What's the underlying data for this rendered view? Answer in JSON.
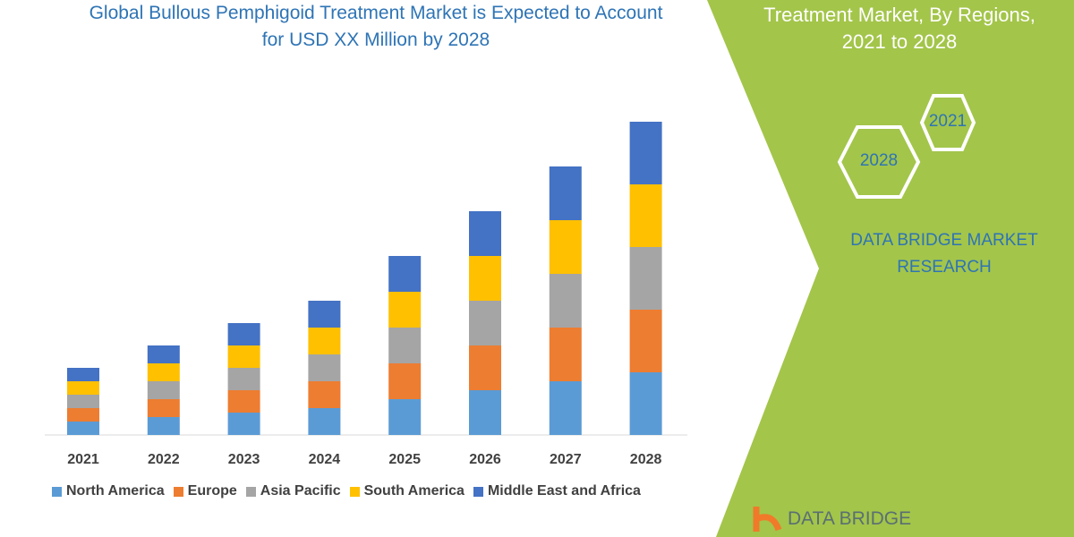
{
  "title_line1": "Global Bullous Pemphigoid Treatment Market is Expected to Account",
  "title_line2": "for USD XX Million by 2028",
  "panel": {
    "title_line1": "Treatment Market, By Regions,",
    "title_line2": "2021 to 2028",
    "hex_a": "2021",
    "hex_b": "2028",
    "brand_line1": "DATA BRIDGE MARKET",
    "brand_line2": "RESEARCH",
    "logo_text": "DATA BRIDGE",
    "color": "#a3c54a"
  },
  "chart_data": {
    "type": "bar",
    "stacked": true,
    "grid": false,
    "legend": "bottom",
    "categories": [
      "2021",
      "2022",
      "2023",
      "2024",
      "2025",
      "2026",
      "2027",
      "2028"
    ],
    "series": [
      {
        "name": "North America",
        "color": "#5b9bd5",
        "values": [
          15,
          20,
          25,
          30,
          40,
          50,
          60,
          70
        ]
      },
      {
        "name": "Europe",
        "color": "#ed7d31",
        "values": [
          15,
          20,
          25,
          30,
          40,
          50,
          60,
          70
        ]
      },
      {
        "name": "Asia Pacific",
        "color": "#a5a5a5",
        "values": [
          15,
          20,
          25,
          30,
          40,
          50,
          60,
          70
        ]
      },
      {
        "name": "South America",
        "color": "#ffc000",
        "values": [
          15,
          20,
          25,
          30,
          40,
          50,
          60,
          70
        ]
      },
      {
        "name": "Middle East and Africa",
        "color": "#4472c4",
        "values": [
          15,
          20,
          25,
          30,
          40,
          50,
          60,
          70
        ]
      }
    ]
  }
}
